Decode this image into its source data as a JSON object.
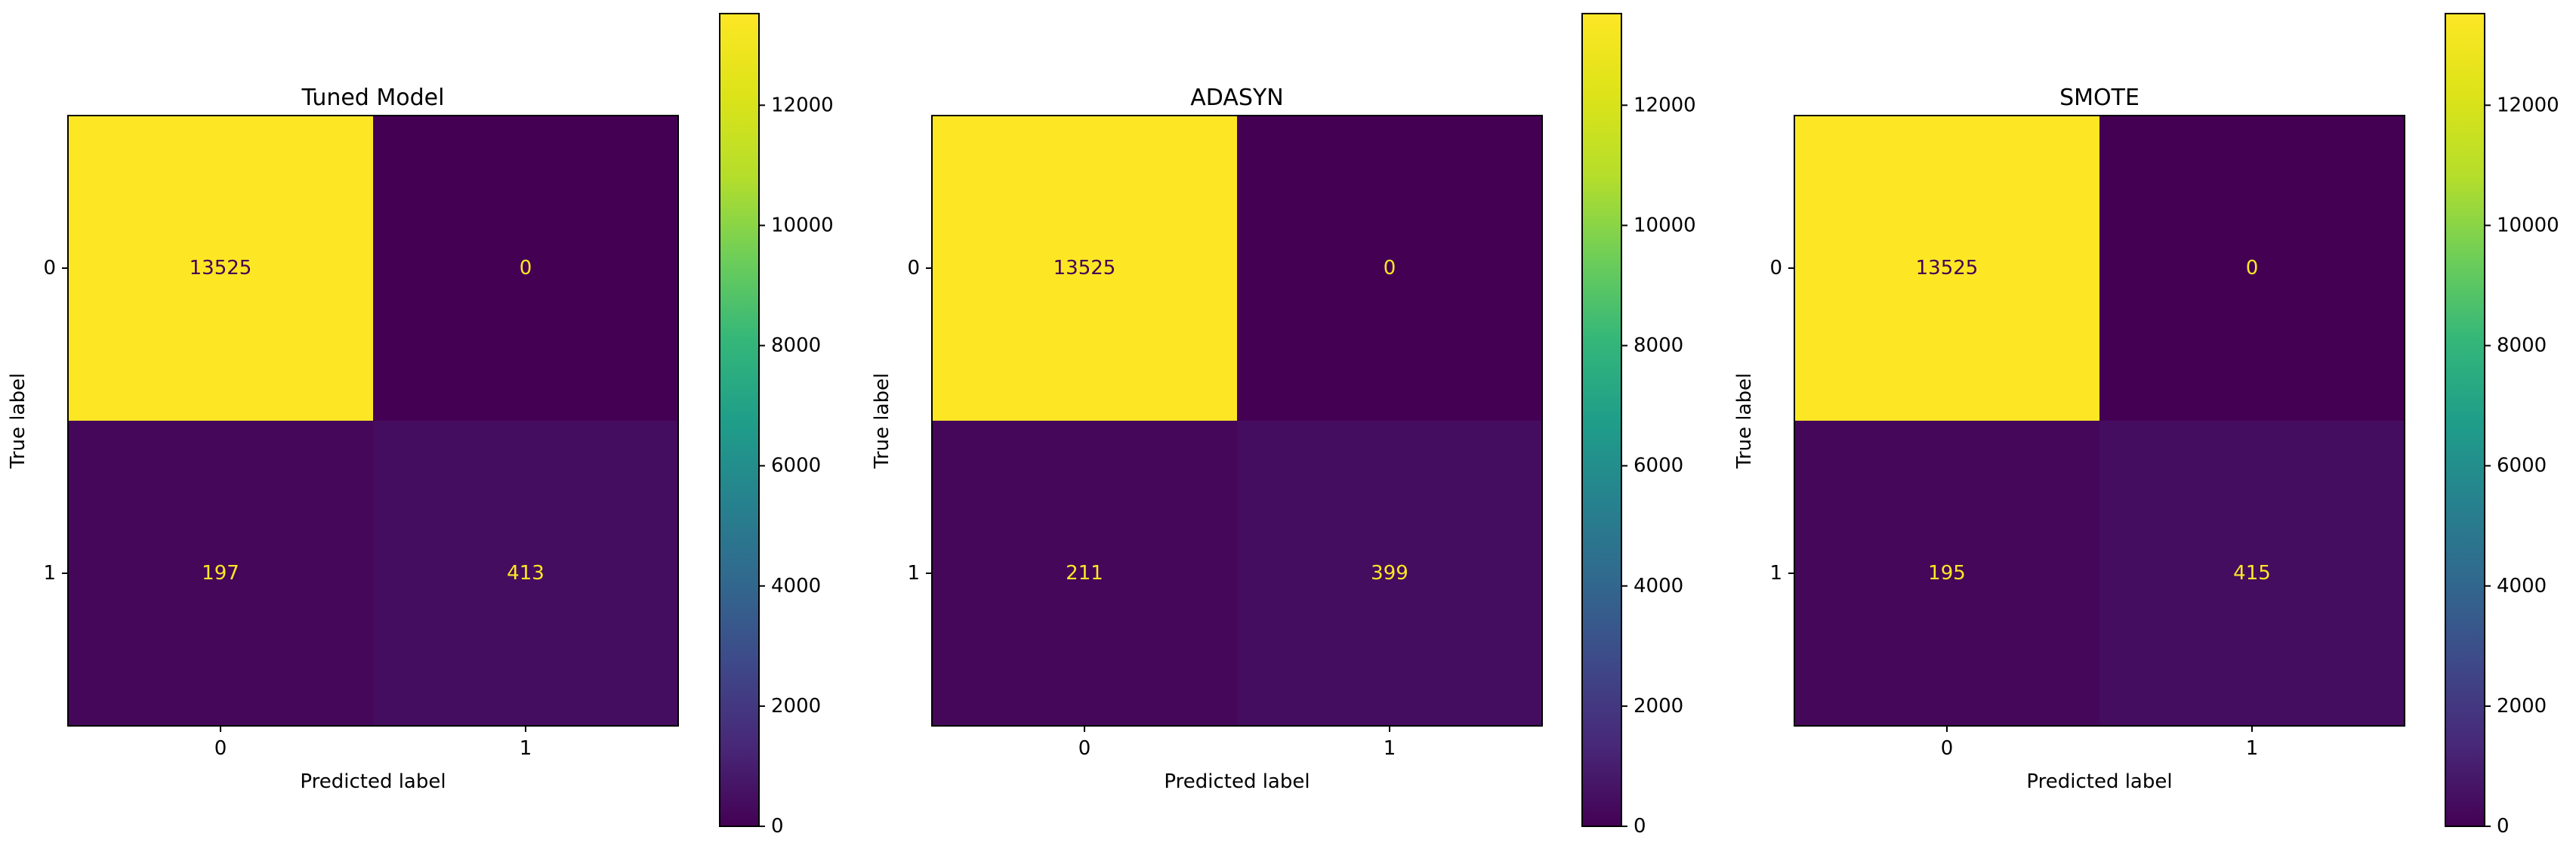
{
  "chart_data": [
    {
      "type": "heatmap",
      "title": "Tuned Model",
      "xlabel": "Predicted label",
      "ylabel": "True label",
      "x_ticks": [
        "0",
        "1"
      ],
      "y_ticks": [
        "0",
        "1"
      ],
      "matrix": [
        [
          13525,
          0
        ],
        [
          197,
          413
        ]
      ],
      "colormap": "viridis",
      "colorbar": {
        "min": 0,
        "max": 13525,
        "ticks": [
          0,
          2000,
          4000,
          6000,
          8000,
          10000,
          12000
        ]
      }
    },
    {
      "type": "heatmap",
      "title": "ADASYN",
      "xlabel": "Predicted label",
      "ylabel": "True label",
      "x_ticks": [
        "0",
        "1"
      ],
      "y_ticks": [
        "0",
        "1"
      ],
      "matrix": [
        [
          13525,
          0
        ],
        [
          211,
          399
        ]
      ],
      "colormap": "viridis",
      "colorbar": {
        "min": 0,
        "max": 13525,
        "ticks": [
          0,
          2000,
          4000,
          6000,
          8000,
          10000,
          12000
        ]
      }
    },
    {
      "type": "heatmap",
      "title": "SMOTE",
      "xlabel": "Predicted label",
      "ylabel": "True label",
      "x_ticks": [
        "0",
        "1"
      ],
      "y_ticks": [
        "0",
        "1"
      ],
      "matrix": [
        [
          13525,
          0
        ],
        [
          195,
          415
        ]
      ],
      "colormap": "viridis",
      "colorbar": {
        "min": 0,
        "max": 13525,
        "ticks": [
          0,
          2000,
          4000,
          6000,
          8000,
          10000,
          12000
        ]
      }
    }
  ],
  "colors": {
    "text_on_dark": "#fde725",
    "text_on_light": "#440154"
  }
}
